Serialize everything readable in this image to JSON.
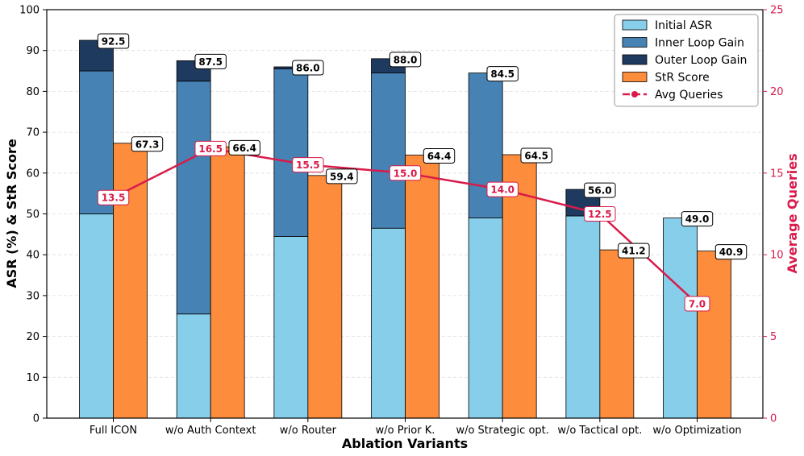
{
  "chart_data": {
    "type": "bar",
    "xlabel": "Ablation Variants",
    "ylabel": "ASR (%) & StR Score",
    "y2label": "Average Queries",
    "ylim": [
      0,
      100
    ],
    "y2lim": [
      0,
      25
    ],
    "yticks": [
      "0",
      "10",
      "20",
      "30",
      "40",
      "50",
      "60",
      "70",
      "80",
      "90",
      "100"
    ],
    "y2ticks": [
      "0",
      "5",
      "10",
      "15",
      "20",
      "25"
    ],
    "categories": [
      "Full ICON",
      "w/o Auth Context",
      "w/o Router",
      "w/o Prior K.",
      "w/o Strategic opt.",
      "w/o Tactical opt.",
      "w/o Optimization"
    ],
    "series": [
      {
        "name": "Initial ASR",
        "color": "#87ceeb",
        "values": [
          50.0,
          25.5,
          44.5,
          46.5,
          49.0,
          49.5,
          49.0
        ]
      },
      {
        "name": "Inner Loop Gain",
        "color": "#4682b4",
        "values": [
          35.0,
          57.0,
          41.0,
          38.0,
          35.5,
          0.0,
          0.0
        ]
      },
      {
        "name": "Outer Loop Gain",
        "color": "#1f3a5f",
        "values": [
          7.5,
          5.0,
          0.5,
          3.5,
          0.0,
          6.5,
          0.0
        ]
      },
      {
        "name": "StR Score",
        "color": "#fd8d3c",
        "values": [
          67.3,
          66.4,
          59.4,
          64.4,
          64.5,
          41.2,
          40.9
        ]
      },
      {
        "name": "Avg Queries",
        "color": "#d81b4a",
        "axis": "right",
        "values": [
          13.5,
          16.5,
          15.5,
          15.0,
          14.0,
          12.5,
          7.0
        ]
      }
    ],
    "total_asr_labels": [
      "92.5",
      "87.5",
      "86.0",
      "88.0",
      "84.5",
      "56.0",
      "49.0"
    ],
    "str_labels": [
      "67.3",
      "66.4",
      "59.4",
      "64.4",
      "64.5",
      "41.2",
      "40.9"
    ],
    "query_labels": [
      "13.5",
      "16.5",
      "15.5",
      "15.0",
      "14.0",
      "12.5",
      "7.0"
    ],
    "legend": [
      "Initial ASR",
      "Inner Loop Gain",
      "Outer Loop Gain",
      "StR Score",
      "Avg Queries"
    ],
    "legend_position": "top-right",
    "grid": true
  }
}
